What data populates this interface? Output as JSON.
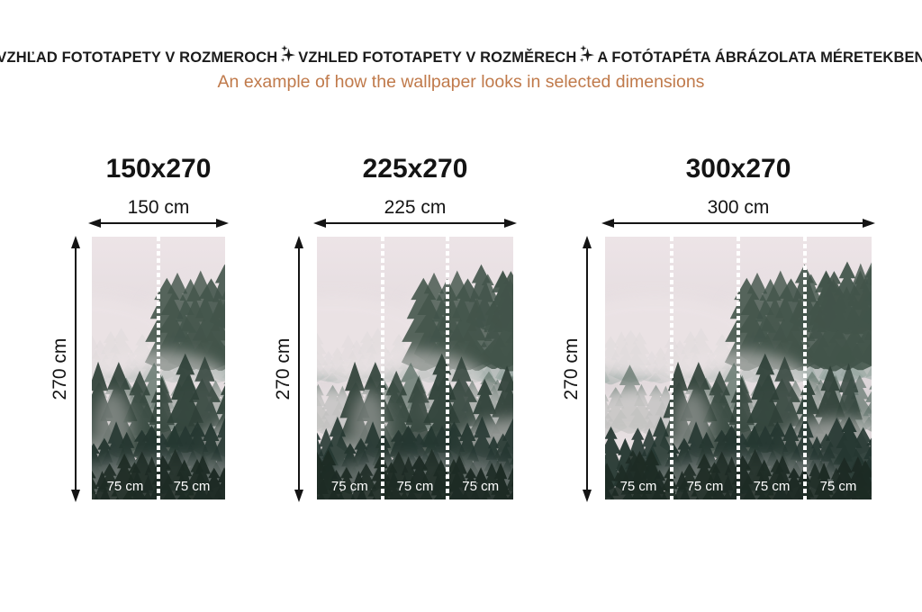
{
  "header": {
    "title_parts": [
      "VZHĽAD FOTOTAPETY V ROZMEROCH",
      "VZHLED FOTOTAPETY V ROZMĚRECH",
      "A FOTÓTAPÉTA ÁBRÁZOLATA MÉRETEKBEN"
    ],
    "subtitle": "An example of how the wallpaper looks in selected dimensions"
  },
  "panels": [
    {
      "title": "150x270",
      "width_label": "150 cm",
      "height_label": "270 cm",
      "strips": [
        "75 cm",
        "75 cm"
      ]
    },
    {
      "title": "225x270",
      "width_label": "225 cm",
      "height_label": "270 cm",
      "strips": [
        "75 cm",
        "75 cm",
        "75 cm"
      ]
    },
    {
      "title": "300x270",
      "width_label": "300 cm",
      "height_label": "270 cm",
      "strips": [
        "75 cm",
        "75 cm",
        "75 cm",
        "75 cm"
      ]
    }
  ],
  "colors": {
    "heading_text": "#1b1b1b",
    "subtitle_text": "#c07a4b",
    "arrow": "#141414",
    "strip_label_text": "#ffffff",
    "divider_dash": "#ffffff",
    "artwork": {
      "sky_top": "#ede4e7",
      "sky_mid": "#ddd6d9",
      "sky_bottom": "#c8c3c5",
      "fog": "#ece4e6",
      "tree_far": "#94a59e",
      "tree_upper": "#42544a",
      "tree_mid": "#60736a",
      "tree_hero": "#2f4138",
      "tree_front": "#253731",
      "tree_deep": "#1d2b24"
    }
  }
}
